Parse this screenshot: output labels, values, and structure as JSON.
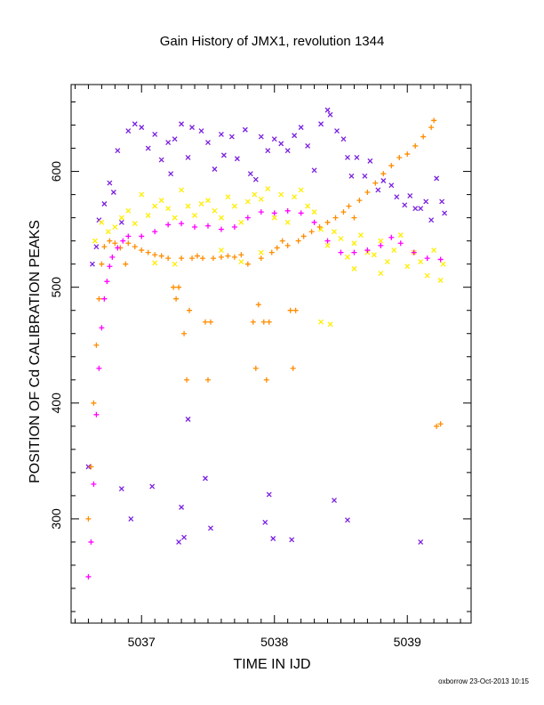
{
  "credit": "oxborrow 23-Oct-2013 10:15",
  "chart_data": {
    "type": "scatter",
    "title": "Gain History of JMX1, revolution 1344",
    "xlabel": "TIME IN IJD",
    "ylabel": "POSITION OF Cd CALIBRATION PEAKS",
    "xlim": [
      5036.47,
      5039.48
    ],
    "ylim": [
      210,
      675
    ],
    "xticks": [
      5037,
      5038,
      5039
    ],
    "yticks": [
      300,
      400,
      500,
      600
    ],
    "grid": false,
    "colors": {
      "purple_x": "#7a1fe0",
      "yellow_x": "#ffee00",
      "orange_plus": "#ff8c00",
      "magenta_plus": "#ff00ff"
    },
    "series": [
      {
        "marker": "x",
        "color": "#7a1fe0",
        "points": [
          [
            5036.6,
            345
          ],
          [
            5036.63,
            520
          ],
          [
            5036.66,
            535
          ],
          [
            5036.68,
            558
          ],
          [
            5036.72,
            572
          ],
          [
            5036.76,
            590
          ],
          [
            5036.79,
            582
          ],
          [
            5036.82,
            618
          ],
          [
            5036.85,
            556
          ],
          [
            5036.9,
            635
          ],
          [
            5036.95,
            641
          ],
          [
            5037.0,
            638
          ],
          [
            5037.05,
            620
          ],
          [
            5037.1,
            632
          ],
          [
            5037.15,
            610
          ],
          [
            5037.2,
            625
          ],
          [
            5037.22,
            598
          ],
          [
            5037.25,
            628
          ],
          [
            5037.3,
            641
          ],
          [
            5037.35,
            612
          ],
          [
            5037.38,
            638
          ],
          [
            5037.45,
            635
          ],
          [
            5037.5,
            625
          ],
          [
            5037.55,
            602
          ],
          [
            5037.6,
            632
          ],
          [
            5037.62,
            614
          ],
          [
            5037.68,
            630
          ],
          [
            5037.72,
            611
          ],
          [
            5037.78,
            636
          ],
          [
            5037.82,
            598
          ],
          [
            5037.86,
            593
          ],
          [
            5037.9,
            630
          ],
          [
            5037.95,
            618
          ],
          [
            5038.0,
            628
          ],
          [
            5038.05,
            624
          ],
          [
            5038.1,
            618
          ],
          [
            5038.15,
            631
          ],
          [
            5038.2,
            638
          ],
          [
            5038.25,
            622
          ],
          [
            5038.3,
            601
          ],
          [
            5038.35,
            641
          ],
          [
            5038.4,
            653
          ],
          [
            5038.42,
            649
          ],
          [
            5038.47,
            635
          ],
          [
            5038.52,
            628
          ],
          [
            5038.55,
            612
          ],
          [
            5038.58,
            596
          ],
          [
            5038.62,
            612
          ],
          [
            5038.68,
            596
          ],
          [
            5038.72,
            609
          ],
          [
            5038.78,
            584
          ],
          [
            5038.82,
            592
          ],
          [
            5038.88,
            588
          ],
          [
            5038.92,
            578
          ],
          [
            5038.98,
            571
          ],
          [
            5039.02,
            579
          ],
          [
            5039.06,
            568
          ],
          [
            5039.1,
            568
          ],
          [
            5039.14,
            574
          ],
          [
            5039.18,
            558
          ],
          [
            5039.22,
            594
          ],
          [
            5039.26,
            574
          ],
          [
            5039.28,
            564
          ],
          [
            5036.85,
            326
          ],
          [
            5036.92,
            300
          ],
          [
            5037.08,
            328
          ],
          [
            5037.28,
            280
          ],
          [
            5037.32,
            284
          ],
          [
            5037.3,
            310
          ],
          [
            5037.35,
            386
          ],
          [
            5037.48,
            335
          ],
          [
            5037.52,
            292
          ],
          [
            5037.93,
            297
          ],
          [
            5037.96,
            321
          ],
          [
            5037.99,
            283
          ],
          [
            5038.13,
            282
          ],
          [
            5038.45,
            316
          ],
          [
            5038.55,
            299
          ],
          [
            5039.1,
            280
          ]
        ]
      },
      {
        "marker": "x",
        "color": "#ffee00",
        "points": [
          [
            5036.65,
            540
          ],
          [
            5036.7,
            556
          ],
          [
            5036.75,
            548
          ],
          [
            5036.8,
            552
          ],
          [
            5036.85,
            560
          ],
          [
            5036.9,
            566
          ],
          [
            5036.95,
            555
          ],
          [
            5037.0,
            580
          ],
          [
            5037.05,
            562
          ],
          [
            5037.1,
            570
          ],
          [
            5037.15,
            575
          ],
          [
            5037.2,
            568
          ],
          [
            5037.25,
            560
          ],
          [
            5037.3,
            584
          ],
          [
            5037.35,
            570
          ],
          [
            5037.4,
            562
          ],
          [
            5037.45,
            572
          ],
          [
            5037.5,
            575
          ],
          [
            5037.55,
            566
          ],
          [
            5037.6,
            560
          ],
          [
            5037.65,
            578
          ],
          [
            5037.7,
            570
          ],
          [
            5037.75,
            556
          ],
          [
            5037.8,
            574
          ],
          [
            5037.85,
            580
          ],
          [
            5037.9,
            576
          ],
          [
            5037.95,
            585
          ],
          [
            5038.0,
            560
          ],
          [
            5038.05,
            580
          ],
          [
            5038.1,
            556
          ],
          [
            5038.15,
            578
          ],
          [
            5038.2,
            584
          ],
          [
            5038.25,
            570
          ],
          [
            5038.3,
            565
          ],
          [
            5038.35,
            550
          ],
          [
            5038.4,
            536
          ],
          [
            5038.45,
            548
          ],
          [
            5038.5,
            542
          ],
          [
            5038.55,
            526
          ],
          [
            5038.6,
            538
          ],
          [
            5038.65,
            545
          ],
          [
            5038.7,
            530
          ],
          [
            5038.75,
            528
          ],
          [
            5038.8,
            540
          ],
          [
            5038.85,
            522
          ],
          [
            5038.9,
            532
          ],
          [
            5038.95,
            545
          ],
          [
            5039.0,
            518
          ],
          [
            5039.05,
            530
          ],
          [
            5039.1,
            522
          ],
          [
            5039.15,
            510
          ],
          [
            5039.2,
            532
          ],
          [
            5039.25,
            506
          ],
          [
            5039.27,
            520
          ],
          [
            5037.1,
            521
          ],
          [
            5037.25,
            520
          ],
          [
            5037.6,
            532
          ],
          [
            5037.75,
            522
          ],
          [
            5037.9,
            530
          ],
          [
            5038.35,
            470
          ],
          [
            5038.42,
            468
          ],
          [
            5038.6,
            516
          ],
          [
            5038.8,
            512
          ]
        ]
      },
      {
        "marker": "+",
        "color": "#ff8c00",
        "points": [
          [
            5036.6,
            300
          ],
          [
            5036.62,
            345
          ],
          [
            5036.64,
            400
          ],
          [
            5036.66,
            450
          ],
          [
            5036.68,
            490
          ],
          [
            5036.7,
            520
          ],
          [
            5036.72,
            535
          ],
          [
            5036.76,
            540
          ],
          [
            5036.8,
            538
          ],
          [
            5036.84,
            534
          ],
          [
            5036.88,
            520
          ],
          [
            5036.9,
            538
          ],
          [
            5036.95,
            535
          ],
          [
            5037.0,
            532
          ],
          [
            5037.05,
            530
          ],
          [
            5037.1,
            528
          ],
          [
            5037.15,
            527
          ],
          [
            5037.2,
            525
          ],
          [
            5037.24,
            500
          ],
          [
            5037.26,
            490
          ],
          [
            5037.28,
            500
          ],
          [
            5037.3,
            525
          ],
          [
            5037.32,
            460
          ],
          [
            5037.34,
            420
          ],
          [
            5037.36,
            480
          ],
          [
            5037.38,
            525
          ],
          [
            5037.42,
            527
          ],
          [
            5037.46,
            525
          ],
          [
            5037.48,
            470
          ],
          [
            5037.5,
            420
          ],
          [
            5037.52,
            470
          ],
          [
            5037.54,
            525
          ],
          [
            5037.6,
            526
          ],
          [
            5037.65,
            527
          ],
          [
            5037.7,
            526
          ],
          [
            5037.75,
            528
          ],
          [
            5037.8,
            520
          ],
          [
            5037.84,
            470
          ],
          [
            5037.86,
            430
          ],
          [
            5037.88,
            485
          ],
          [
            5037.9,
            525
          ],
          [
            5037.92,
            470
          ],
          [
            5037.94,
            420
          ],
          [
            5037.96,
            470
          ],
          [
            5037.98,
            530
          ],
          [
            5038.02,
            534
          ],
          [
            5038.06,
            540
          ],
          [
            5038.1,
            536
          ],
          [
            5038.12,
            480
          ],
          [
            5038.14,
            430
          ],
          [
            5038.16,
            480
          ],
          [
            5038.18,
            540
          ],
          [
            5038.22,
            544
          ],
          [
            5038.28,
            548
          ],
          [
            5038.34,
            552
          ],
          [
            5038.4,
            556
          ],
          [
            5038.46,
            560
          ],
          [
            5038.52,
            565
          ],
          [
            5038.56,
            570
          ],
          [
            5038.6,
            560
          ],
          [
            5038.64,
            575
          ],
          [
            5038.7,
            582
          ],
          [
            5038.76,
            590
          ],
          [
            5038.82,
            598
          ],
          [
            5038.88,
            605
          ],
          [
            5038.94,
            612
          ],
          [
            5039.0,
            615
          ],
          [
            5039.06,
            622
          ],
          [
            5039.12,
            630
          ],
          [
            5039.18,
            638
          ],
          [
            5039.2,
            644
          ],
          [
            5039.22,
            380
          ],
          [
            5039.25,
            382
          ]
        ]
      },
      {
        "marker": "+",
        "color": "#ff00ff",
        "points": [
          [
            5036.6,
            250
          ],
          [
            5036.62,
            280
          ],
          [
            5036.64,
            330
          ],
          [
            5036.66,
            390
          ],
          [
            5036.68,
            430
          ],
          [
            5036.7,
            465
          ],
          [
            5036.72,
            490
          ],
          [
            5036.74,
            505
          ],
          [
            5036.76,
            518
          ],
          [
            5036.78,
            526
          ],
          [
            5036.82,
            534
          ],
          [
            5036.86,
            540
          ],
          [
            5036.9,
            544
          ],
          [
            5037.0,
            544
          ],
          [
            5037.1,
            548
          ],
          [
            5037.2,
            554
          ],
          [
            5037.3,
            555
          ],
          [
            5037.4,
            552
          ],
          [
            5037.5,
            553
          ],
          [
            5037.6,
            550
          ],
          [
            5037.7,
            552
          ],
          [
            5037.8,
            560
          ],
          [
            5037.9,
            565
          ],
          [
            5038.0,
            564
          ],
          [
            5038.1,
            566
          ],
          [
            5038.2,
            564
          ],
          [
            5038.3,
            556
          ],
          [
            5038.4,
            540
          ],
          [
            5038.5,
            530
          ],
          [
            5038.6,
            530
          ],
          [
            5038.7,
            532
          ],
          [
            5038.8,
            536
          ],
          [
            5038.88,
            543
          ],
          [
            5038.95,
            538
          ],
          [
            5039.05,
            530
          ],
          [
            5039.15,
            525
          ],
          [
            5039.25,
            524
          ]
        ]
      }
    ]
  }
}
